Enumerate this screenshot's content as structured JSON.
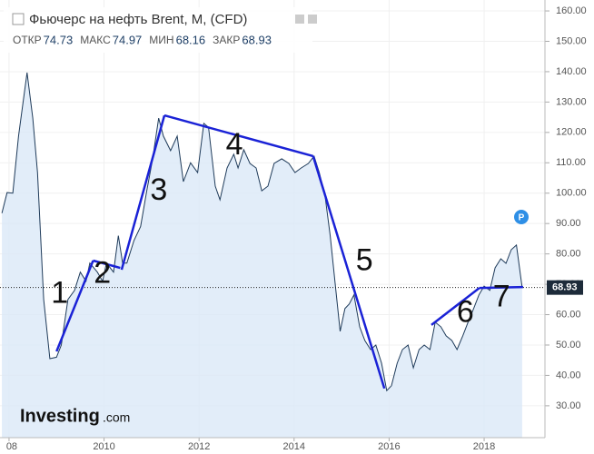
{
  "chart_data": {
    "type": "area",
    "title": "Фьючерс на нефть Brent, M, (CFD)",
    "quote": [
      {
        "label": "ОТКР",
        "value": 74.73
      },
      {
        "label": "МАКС",
        "value": 74.97
      },
      {
        "label": "МИН",
        "value": 68.16
      },
      {
        "label": "ЗАКР",
        "value": 68.93
      }
    ],
    "last_price": 68.93,
    "watermark": [
      "Investing",
      ".com"
    ],
    "badge": "P",
    "color": "#1f3b5a",
    "fill": "#dbe9f7",
    "annotation_color": "#1a22d6",
    "x": [
      2007.85,
      2007.96,
      2008.08,
      2008.2,
      2008.38,
      2008.5,
      2008.6,
      2008.73,
      2008.86,
      2009.0,
      2009.1,
      2009.24,
      2009.38,
      2009.5,
      2009.62,
      2009.7,
      2009.86,
      2009.97,
      2010.05,
      2010.2,
      2010.3,
      2010.39,
      2010.48,
      2010.63,
      2010.77,
      2010.9,
      2011.02,
      2011.15,
      2011.25,
      2011.4,
      2011.54,
      2011.67,
      2011.82,
      2011.97,
      2012.1,
      2012.2,
      2012.34,
      2012.44,
      2012.59,
      2012.73,
      2012.82,
      2012.94,
      2013.07,
      2013.2,
      2013.32,
      2013.45,
      2013.58,
      2013.74,
      2013.89,
      2014.02,
      2014.15,
      2014.3,
      2014.42,
      2014.53,
      2014.65,
      2014.76,
      2014.88,
      2014.97,
      2015.07,
      2015.16,
      2015.26,
      2015.38,
      2015.49,
      2015.61,
      2015.72,
      2015.84,
      2015.95,
      2016.05,
      2016.17,
      2016.28,
      2016.4,
      2016.51,
      2016.63,
      2016.74,
      2016.86,
      2016.97,
      2017.09,
      2017.2,
      2017.32,
      2017.43,
      2017.55,
      2017.66,
      2017.78,
      2017.89,
      2018.0,
      2018.12,
      2018.23,
      2018.35,
      2018.46,
      2018.57,
      2018.68,
      2018.8
    ],
    "values": [
      93.4,
      100.2,
      100,
      118.8,
      139.7,
      124.7,
      106.8,
      65,
      45.5,
      46,
      50,
      65,
      68,
      74,
      71,
      77,
      74,
      71,
      77,
      74,
      86,
      77,
      77,
      84.4,
      89,
      100.8,
      111,
      124.7,
      118.8,
      114,
      118.8,
      103.8,
      110,
      106.8,
      123,
      121.7,
      102.3,
      97.8,
      108.3,
      112.8,
      108.3,
      114.3,
      109.8,
      108.3,
      100.8,
      102.3,
      109.8,
      111.3,
      109.8,
      106.8,
      108.3,
      109.8,
      112.2,
      106.8,
      99.3,
      85.9,
      68,
      54.5,
      62,
      63.5,
      66.5,
      56,
      51.5,
      48.5,
      50,
      44,
      35,
      36.6,
      44,
      48.5,
      50,
      42.5,
      48.5,
      50,
      48.5,
      57.5,
      56,
      53,
      51.5,
      48.5,
      53,
      57.5,
      62,
      66.5,
      69.4,
      68,
      75.4,
      78.4,
      76.9,
      81.4,
      82.9,
      68.93
    ],
    "annotations": [
      {
        "label": "1",
        "x": [
          2009.0,
          2009.77
        ],
        "y": [
          47.9,
          77.8
        ]
      },
      {
        "label": "2",
        "x": [
          2009.77,
          2010.34
        ],
        "y": [
          77.8,
          75.4
        ]
      },
      {
        "label": "3",
        "x": [
          2010.37,
          2011.27
        ],
        "y": [
          74.8,
          125.6
        ]
      },
      {
        "label": "4",
        "x": [
          2011.27,
          2014.4
        ],
        "y": [
          125.6,
          112.2
        ]
      },
      {
        "label": "5",
        "x": [
          2014.4,
          2015.9
        ],
        "y": [
          112.2,
          35.7
        ]
      },
      {
        "label": "6",
        "x": [
          2016.89,
          2017.9
        ],
        "y": [
          56.6,
          68.8
        ]
      },
      {
        "label": "7",
        "x": [
          2017.9,
          2018.82
        ],
        "y": [
          68.8,
          69.1
        ]
      }
    ],
    "xlim": [
      2007.81,
      2019.28
    ],
    "xticks": [
      {
        "value": 2008,
        "label": "08"
      },
      2010,
      2012,
      2014,
      2016,
      2018
    ],
    "ylim": [
      19.5,
      163.6
    ],
    "yticks": [
      {
        "value": 30,
        "label": "30.00"
      },
      {
        "value": 40,
        "label": "40.00"
      },
      {
        "value": 50,
        "label": "50.00"
      },
      {
        "value": 60,
        "label": "60.00"
      },
      {
        "value": 70,
        "label": "70.00"
      },
      {
        "value": 80,
        "label": "80.00"
      },
      {
        "value": 90,
        "label": "90.00"
      },
      {
        "value": 100,
        "label": "100.00"
      },
      {
        "value": 110,
        "label": "110.00"
      },
      {
        "value": 120,
        "label": "120.00"
      },
      {
        "value": 130,
        "label": "130.00"
      },
      {
        "value": 140,
        "label": "140.00"
      },
      {
        "value": 150,
        "label": "150.00"
      },
      {
        "value": 160,
        "label": "160.00"
      }
    ],
    "grid": true
  }
}
